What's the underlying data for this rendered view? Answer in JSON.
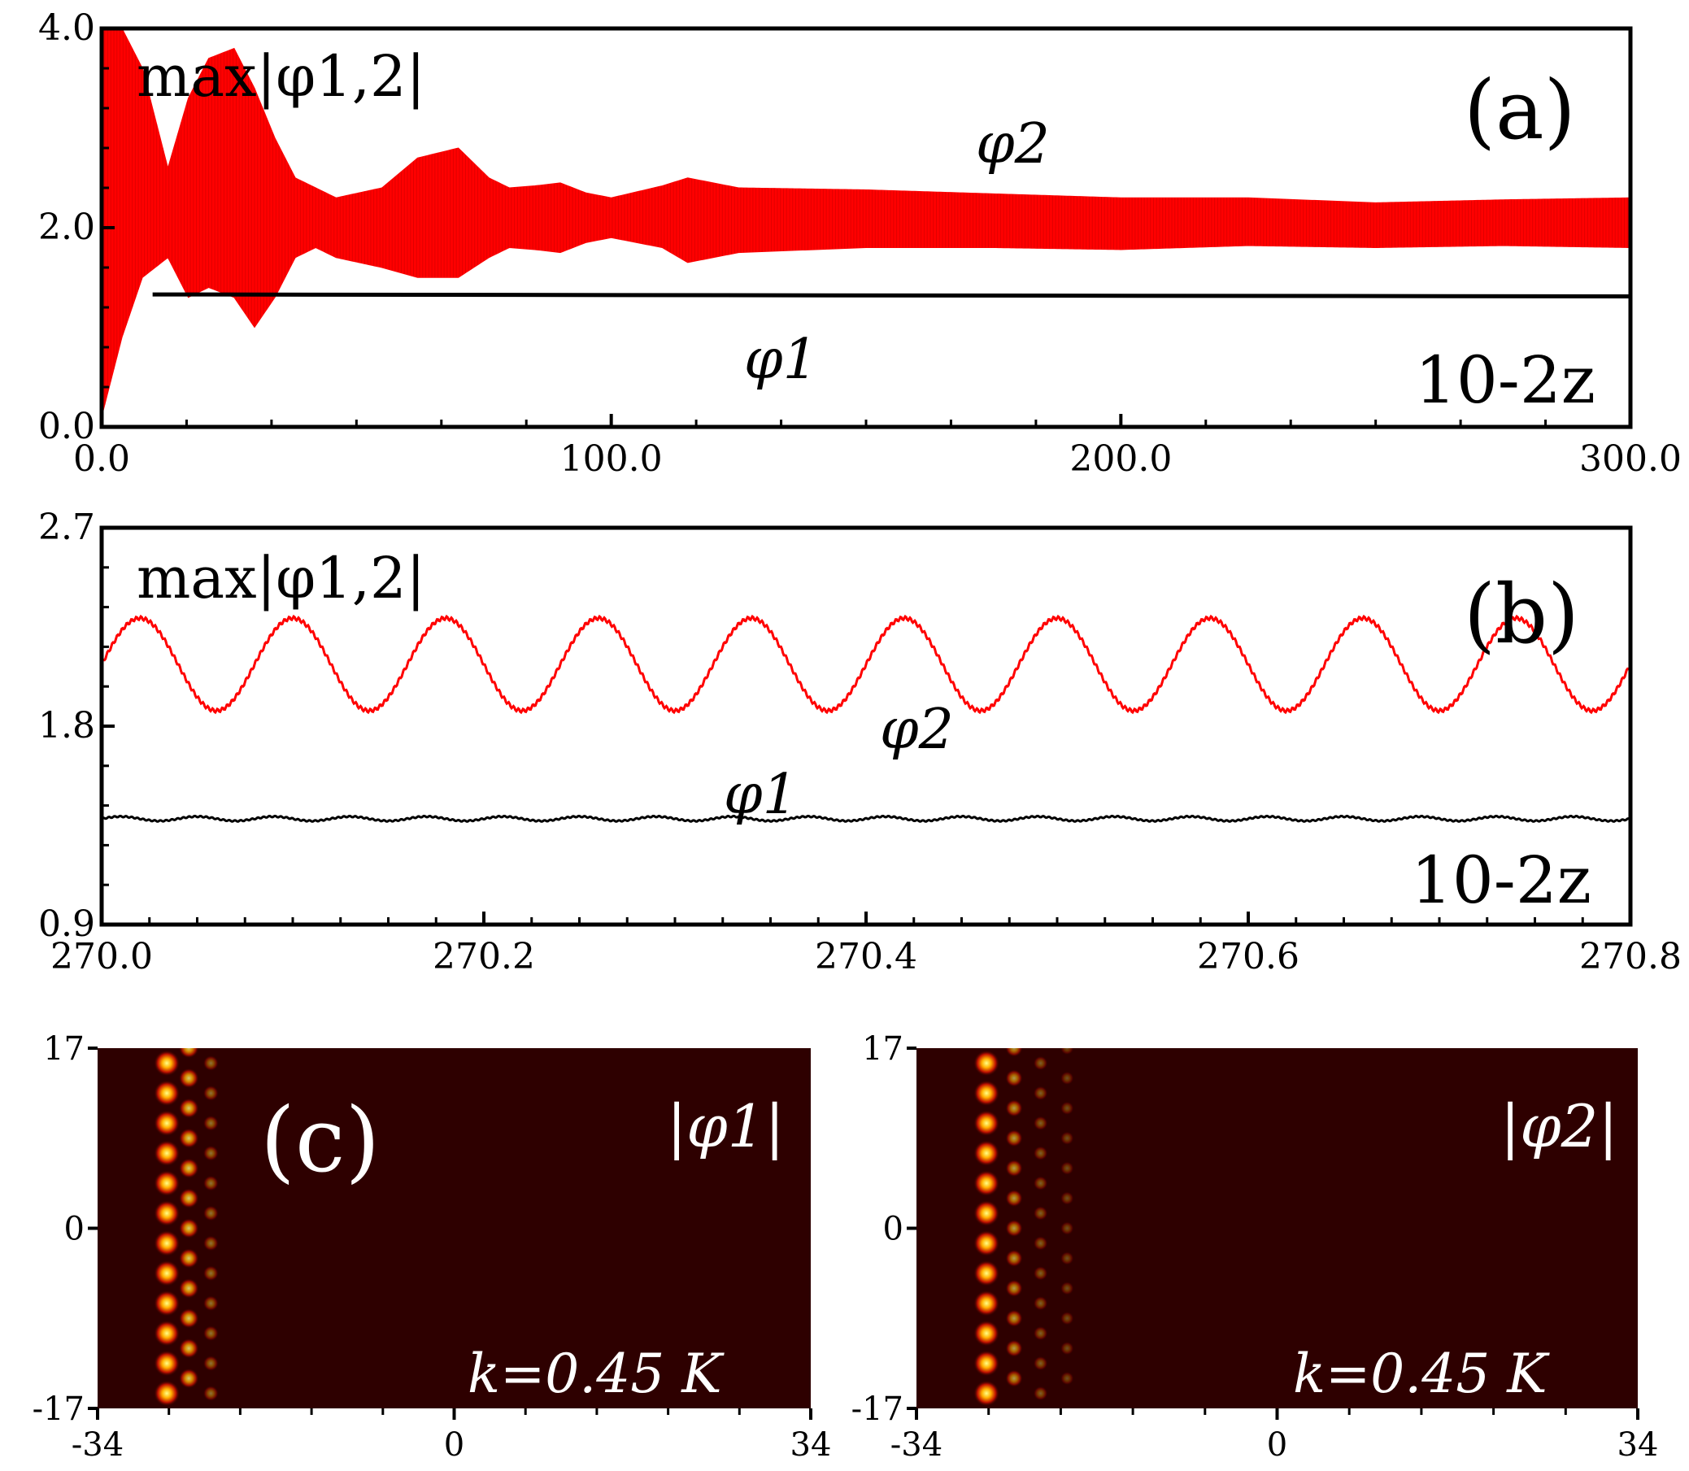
{
  "colors": {
    "phi2": "#ff0000",
    "phi1": "#000000",
    "heat_bg": "#2e0000",
    "heat_peak": "#ffff66"
  },
  "chart_data": [
    {
      "id": "a",
      "type": "line",
      "panel_label": "(a)",
      "ylabel": "max|φ1,2|",
      "xlabel": "10-2z",
      "xlim": [
        0,
        300
      ],
      "ylim": [
        0,
        4
      ],
      "xticks": [
        "0.0",
        "100.0",
        "200.0",
        "300.0"
      ],
      "yticks": [
        "0.0",
        "2.0",
        "4.0"
      ],
      "series": [
        {
          "name": "φ2",
          "style": "filled envelope",
          "x": [
            0,
            4,
            8,
            13,
            17,
            21,
            26,
            30,
            34,
            38,
            42,
            46,
            55,
            62,
            70,
            76,
            80,
            85,
            90,
            95,
            100,
            110,
            115,
            125,
            150,
            175,
            200,
            225,
            250,
            275,
            300
          ],
          "upper": [
            4.0,
            4.0,
            3.6,
            2.6,
            3.3,
            3.7,
            3.8,
            3.4,
            2.9,
            2.5,
            2.4,
            2.3,
            2.4,
            2.7,
            2.8,
            2.5,
            2.4,
            2.42,
            2.45,
            2.35,
            2.3,
            2.42,
            2.5,
            2.4,
            2.38,
            2.34,
            2.3,
            2.3,
            2.25,
            2.28,
            2.3
          ],
          "lower": [
            0.1,
            0.9,
            1.5,
            1.7,
            1.3,
            1.4,
            1.3,
            1.0,
            1.3,
            1.7,
            1.8,
            1.7,
            1.6,
            1.5,
            1.5,
            1.7,
            1.8,
            1.78,
            1.75,
            1.85,
            1.9,
            1.8,
            1.65,
            1.75,
            1.8,
            1.8,
            1.78,
            1.82,
            1.8,
            1.82,
            1.8
          ]
        },
        {
          "name": "φ1",
          "x": [
            10,
            300
          ],
          "y": [
            1.33,
            1.31
          ]
        }
      ],
      "labels": {
        "phi1": "φ1",
        "phi2": "φ2"
      }
    },
    {
      "id": "b",
      "type": "line",
      "panel_label": "(b)",
      "ylabel": "max|φ1,2|",
      "xlabel": "10-2z",
      "xlim": [
        270.0,
        270.8
      ],
      "ylim": [
        0.9,
        2.7
      ],
      "xticks": [
        "270.0",
        "270.2",
        "270.4",
        "270.6",
        "270.8"
      ],
      "yticks": [
        "0.9",
        "1.8",
        "2.7"
      ],
      "series": [
        {
          "name": "φ2",
          "mean": 2.08,
          "amplitude": 0.21,
          "period": 0.08,
          "phase_min_at": 270.06
        },
        {
          "name": "φ1",
          "mean": 1.38,
          "amplitude": 0.01,
          "period": 0.04
        }
      ],
      "labels": {
        "phi1": "φ1",
        "phi2": "φ2"
      }
    },
    {
      "id": "c",
      "type": "heatmap",
      "panel_label": "(c)",
      "title": "|φ1|",
      "annotation": "k=0.45 K",
      "xlim": [
        -34,
        34
      ],
      "ylim": [
        -17,
        17
      ],
      "xticks": [
        "-34",
        "0",
        "34"
      ],
      "yticks": [
        "-17",
        "0",
        "17"
      ],
      "spots": {
        "columns_x": [
          -27.4,
          -25.3,
          -23.2
        ],
        "column_intensity": [
          1.0,
          0.55,
          0.2
        ],
        "rows": 12
      }
    },
    {
      "id": "d",
      "type": "heatmap",
      "title": "|φ2|",
      "annotation": "k=0.45 K",
      "xlim": [
        -34,
        34
      ],
      "ylim": [
        -17,
        17
      ],
      "xticks": [
        "-34",
        "0",
        "34"
      ],
      "yticks": [
        "-17",
        "0",
        "17"
      ],
      "spots": {
        "columns_x": [
          -27.4,
          -24.8,
          -22.3,
          -19.8
        ],
        "column_intensity": [
          1.0,
          0.35,
          0.12,
          0.05
        ],
        "rows": 12
      }
    }
  ]
}
